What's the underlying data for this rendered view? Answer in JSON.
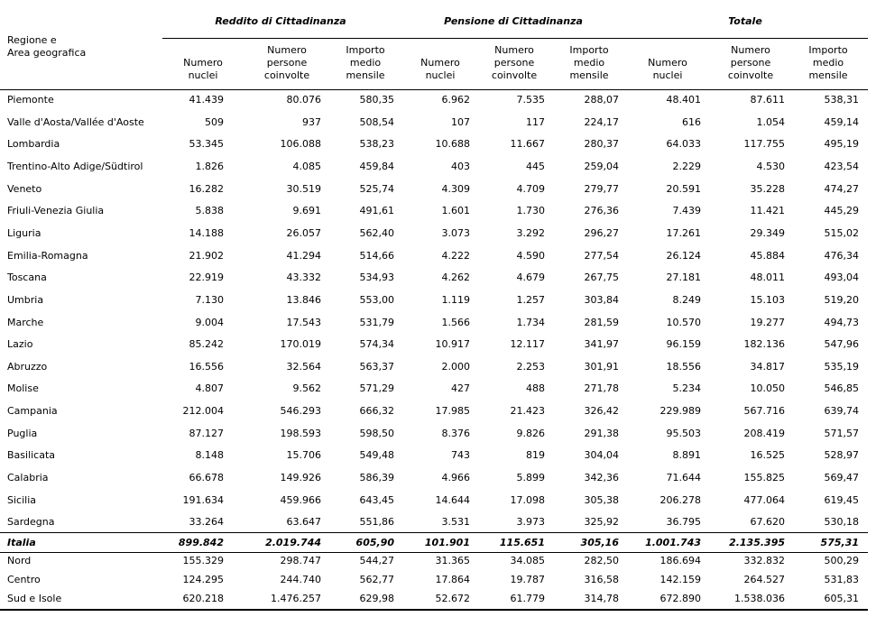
{
  "header": {
    "region": [
      "Regione e",
      "Area geografica"
    ],
    "groups": [
      "Reddito di Cittadinanza",
      "Pensione di Cittadinanza",
      "Totale"
    ],
    "columns": [
      [
        "Numero",
        "nuclei"
      ],
      [
        "Numero",
        "persone",
        "coinvolte"
      ],
      [
        "Importo",
        "medio",
        "mensile"
      ],
      [
        "Numero",
        "nuclei"
      ],
      [
        "Numero",
        "persone",
        "coinvolte"
      ],
      [
        "Importo",
        "medio",
        "mensile"
      ],
      [
        "Numero",
        "nuclei"
      ],
      [
        "Numero",
        "persone",
        "coinvolte"
      ],
      [
        "Importo",
        "medio",
        "mensile"
      ]
    ]
  },
  "regions": [
    {
      "label": "Piemonte",
      "values": [
        "41.439",
        "80.076",
        "580,35",
        "6.962",
        "7.535",
        "288,07",
        "48.401",
        "87.611",
        "538,31"
      ]
    },
    {
      "label": "Valle d'Aosta/Vallée d'Aoste",
      "values": [
        "509",
        "937",
        "508,54",
        "107",
        "117",
        "224,17",
        "616",
        "1.054",
        "459,14"
      ]
    },
    {
      "label": "Lombardia",
      "values": [
        "53.345",
        "106.088",
        "538,23",
        "10.688",
        "11.667",
        "280,37",
        "64.033",
        "117.755",
        "495,19"
      ]
    },
    {
      "label": "Trentino-Alto Adige/Südtirol",
      "values": [
        "1.826",
        "4.085",
        "459,84",
        "403",
        "445",
        "259,04",
        "2.229",
        "4.530",
        "423,54"
      ]
    },
    {
      "label": "Veneto",
      "values": [
        "16.282",
        "30.519",
        "525,74",
        "4.309",
        "4.709",
        "279,77",
        "20.591",
        "35.228",
        "474,27"
      ]
    },
    {
      "label": "Friuli-Venezia Giulia",
      "values": [
        "5.838",
        "9.691",
        "491,61",
        "1.601",
        "1.730",
        "276,36",
        "7.439",
        "11.421",
        "445,29"
      ]
    },
    {
      "label": "Liguria",
      "values": [
        "14.188",
        "26.057",
        "562,40",
        "3.073",
        "3.292",
        "296,27",
        "17.261",
        "29.349",
        "515,02"
      ]
    },
    {
      "label": "Emilia-Romagna",
      "values": [
        "21.902",
        "41.294",
        "514,66",
        "4.222",
        "4.590",
        "277,54",
        "26.124",
        "45.884",
        "476,34"
      ]
    },
    {
      "label": "Toscana",
      "values": [
        "22.919",
        "43.332",
        "534,93",
        "4.262",
        "4.679",
        "267,75",
        "27.181",
        "48.011",
        "493,04"
      ]
    },
    {
      "label": "Umbria",
      "values": [
        "7.130",
        "13.846",
        "553,00",
        "1.119",
        "1.257",
        "303,84",
        "8.249",
        "15.103",
        "519,20"
      ]
    },
    {
      "label": "Marche",
      "values": [
        "9.004",
        "17.543",
        "531,79",
        "1.566",
        "1.734",
        "281,59",
        "10.570",
        "19.277",
        "494,73"
      ]
    },
    {
      "label": "Lazio",
      "values": [
        "85.242",
        "170.019",
        "574,34",
        "10.917",
        "12.117",
        "341,97",
        "96.159",
        "182.136",
        "547,96"
      ]
    },
    {
      "label": "Abruzzo",
      "values": [
        "16.556",
        "32.564",
        "563,37",
        "2.000",
        "2.253",
        "301,91",
        "18.556",
        "34.817",
        "535,19"
      ]
    },
    {
      "label": "Molise",
      "values": [
        "4.807",
        "9.562",
        "571,29",
        "427",
        "488",
        "271,78",
        "5.234",
        "10.050",
        "546,85"
      ]
    },
    {
      "label": "Campania",
      "values": [
        "212.004",
        "546.293",
        "666,32",
        "17.985",
        "21.423",
        "326,42",
        "229.989",
        "567.716",
        "639,74"
      ]
    },
    {
      "label": "Puglia",
      "values": [
        "87.127",
        "198.593",
        "598,50",
        "8.376",
        "9.826",
        "291,38",
        "95.503",
        "208.419",
        "571,57"
      ]
    },
    {
      "label": "Basilicata",
      "values": [
        "8.148",
        "15.706",
        "549,48",
        "743",
        "819",
        "304,04",
        "8.891",
        "16.525",
        "528,97"
      ]
    },
    {
      "label": "Calabria",
      "values": [
        "66.678",
        "149.926",
        "586,39",
        "4.966",
        "5.899",
        "342,36",
        "71.644",
        "155.825",
        "569,47"
      ]
    },
    {
      "label": "Sicilia",
      "values": [
        "191.634",
        "459.966",
        "643,45",
        "14.644",
        "17.098",
        "305,38",
        "206.278",
        "477.064",
        "619,45"
      ]
    },
    {
      "label": "Sardegna",
      "values": [
        "33.264",
        "63.647",
        "551,86",
        "3.531",
        "3.973",
        "325,92",
        "36.795",
        "67.620",
        "530,18"
      ]
    }
  ],
  "total": {
    "label": "Italia",
    "values": [
      "899.842",
      "2.019.744",
      "605,90",
      "101.901",
      "115.651",
      "305,16",
      "1.001.743",
      "2.135.395",
      "575,31"
    ]
  },
  "areas": [
    {
      "label": "Nord",
      "values": [
        "155.329",
        "298.747",
        "544,27",
        "31.365",
        "34.085",
        "282,50",
        "186.694",
        "332.832",
        "500,29"
      ]
    },
    {
      "label": "Centro",
      "values": [
        "124.295",
        "244.740",
        "562,77",
        "17.864",
        "19.787",
        "316,58",
        "142.159",
        "264.527",
        "531,83"
      ]
    },
    {
      "label": "Sud e Isole",
      "values": [
        "620.218",
        "1.476.257",
        "629,98",
        "52.672",
        "61.779",
        "314,78",
        "672.890",
        "1.538.036",
        "605,31"
      ]
    }
  ]
}
